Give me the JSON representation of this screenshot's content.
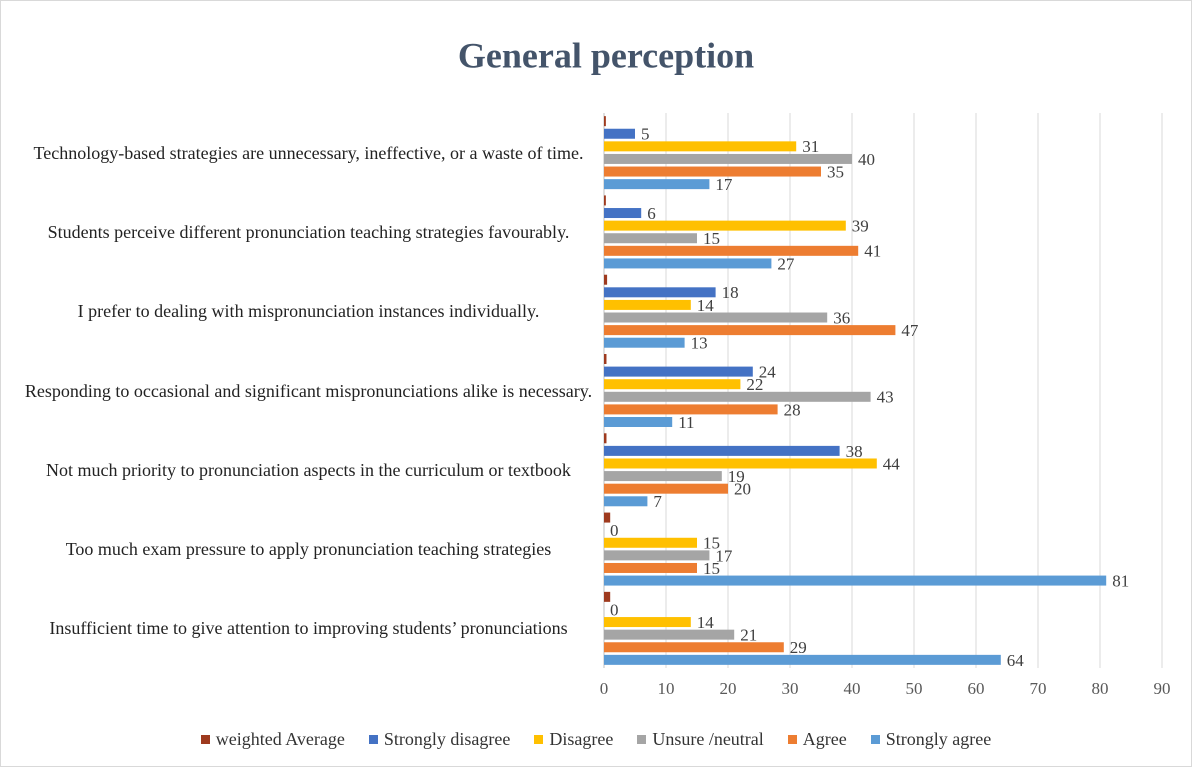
{
  "chart_data": {
    "type": "hbar",
    "title": "General perception",
    "categories": [
      "Technology-based strategies are unnecessary, ineffective,  or a waste of time.",
      "Students perceive different pronunciation teaching strategies favourably.",
      "I prefer to dealing with mispronunciation instances individually.",
      "Responding to occasional and significant mispronunciations alike is necessary.",
      "Not much priority to pronunciation aspects in the curriculum or textbook",
      "Too much exam pressure to apply pronunciation teaching strategies",
      "Insufficient time to give attention to improving students’ pronunciations"
    ],
    "series": [
      {
        "name": "weighted Average",
        "color": "#9e3a1e",
        "values": [
          0.3,
          0.3,
          0.5,
          0.4,
          0.4,
          1,
          1
        ],
        "labels": false
      },
      {
        "name": "Strongly disagree",
        "color": "#4472c4",
        "values": [
          5,
          6,
          18,
          24,
          38,
          0,
          0
        ]
      },
      {
        "name": "Disagree",
        "color": "#ffc000",
        "values": [
          31,
          39,
          14,
          22,
          44,
          15,
          14
        ]
      },
      {
        "name": "Unsure /neutral",
        "color": "#a5a5a5",
        "values": [
          40,
          15,
          36,
          43,
          19,
          17,
          21
        ]
      },
      {
        "name": "Agree",
        "color": "#ed7d31",
        "values": [
          35,
          41,
          47,
          28,
          20,
          15,
          29
        ]
      },
      {
        "name": "Strongly agree",
        "color": "#5b9bd5",
        "values": [
          17,
          27,
          13,
          11,
          7,
          81,
          64
        ]
      }
    ],
    "xlim": [
      0,
      90
    ],
    "xticks": [
      0,
      10,
      20,
      30,
      40,
      50,
      60,
      70,
      80,
      90
    ],
    "grid": true
  }
}
